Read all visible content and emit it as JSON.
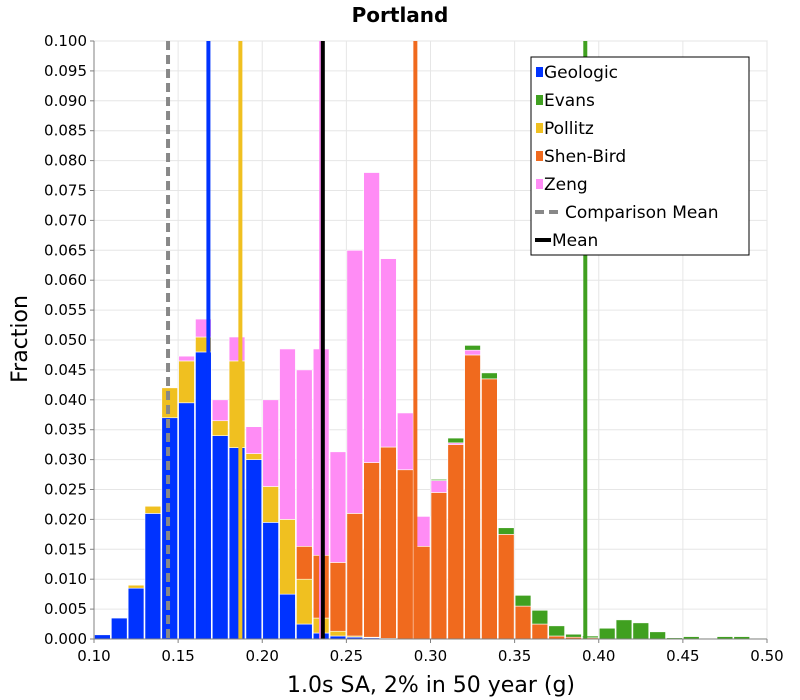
{
  "chart_data": {
    "type": "bar",
    "title": "Portland",
    "xlabel": "1.0s SA, 2% in 50 year (g)",
    "ylabel": "Fraction",
    "xlim": [
      0.1,
      0.5
    ],
    "ylim": [
      0.0,
      0.1
    ],
    "x_ticks": [
      "0.10",
      "0.15",
      "0.20",
      "0.25",
      "0.30",
      "0.35",
      "0.40",
      "0.45",
      "0.50"
    ],
    "y_ticks": [
      "0.000",
      "0.005",
      "0.010",
      "0.015",
      "0.020",
      "0.025",
      "0.030",
      "0.035",
      "0.040",
      "0.045",
      "0.050",
      "0.055",
      "0.060",
      "0.065",
      "0.070",
      "0.075",
      "0.080",
      "0.085",
      "0.090",
      "0.095",
      "0.100"
    ],
    "grid": true,
    "stacked": true,
    "legend_position": "top-right",
    "bin_width": 0.01,
    "bin_starts": [
      0.1,
      0.11,
      0.12,
      0.13,
      0.14,
      0.15,
      0.16,
      0.17,
      0.18,
      0.19,
      0.2,
      0.21,
      0.22,
      0.23,
      0.24,
      0.25,
      0.26,
      0.27,
      0.28,
      0.29,
      0.3,
      0.31,
      0.32,
      0.33,
      0.34,
      0.35,
      0.36,
      0.37,
      0.38,
      0.39,
      0.4,
      0.41,
      0.42,
      0.43,
      0.44,
      0.45,
      0.46,
      0.47,
      0.48,
      0.49
    ],
    "series": [
      {
        "name": "Geologic",
        "color": "#0033ff",
        "values": [
          0.0007,
          0.0035,
          0.0085,
          0.021,
          0.037,
          0.0395,
          0.048,
          0.034,
          0.032,
          0.03,
          0.0195,
          0.0075,
          0.0025,
          0.001,
          0.0005,
          0.0003,
          0.0002,
          0.0001,
          0,
          0,
          0,
          0,
          0,
          0,
          0,
          0,
          0,
          0,
          0,
          0,
          0,
          0,
          0,
          0,
          0,
          0,
          0,
          0,
          0,
          0
        ]
      },
      {
        "name": "Pollitz",
        "color": "#f0c020",
        "values": [
          0,
          0,
          0.0005,
          0.0012,
          0.005,
          0.007,
          0.0025,
          0.0025,
          0.0145,
          0.001,
          0.006,
          0.0125,
          0.0075,
          0.0025,
          0.0008,
          0.0002,
          0.0001,
          0,
          0,
          0,
          0,
          0,
          0,
          0,
          0,
          0,
          0,
          0,
          0,
          0,
          0,
          0,
          0,
          0,
          0,
          0,
          0,
          0,
          0,
          0
        ]
      },
      {
        "name": "Shen-Bird",
        "color": "#f06a1e",
        "values": [
          0,
          0,
          0,
          0,
          0,
          0,
          0,
          0,
          0,
          0,
          0,
          0,
          0.0055,
          0.0105,
          0.0115,
          0.0205,
          0.0292,
          0.032,
          0.0283,
          0.0155,
          0.0245,
          0.0325,
          0.0475,
          0.0435,
          0.0175,
          0.0055,
          0.0025,
          0.0005,
          0.0003,
          0.0002,
          0,
          0,
          0,
          0,
          0,
          0,
          0,
          0,
          0,
          0
        ]
      },
      {
        "name": "Zeng",
        "color": "#ff8cf5",
        "values": [
          0,
          0,
          0,
          0,
          0,
          0.0008,
          0.003,
          0.0035,
          0.004,
          0.0045,
          0.0145,
          0.0285,
          0.0295,
          0.0345,
          0.0185,
          0.044,
          0.0485,
          0.0315,
          0.0095,
          0.005,
          0.002,
          0.0003,
          0.0008,
          0,
          0,
          0,
          0,
          0,
          0,
          0,
          0,
          0,
          0,
          0,
          0,
          0,
          0,
          0,
          0,
          0
        ]
      },
      {
        "name": "Evans",
        "color": "#40a020",
        "values": [
          0,
          0,
          0,
          0,
          0,
          0,
          0,
          0,
          0,
          0,
          0,
          0,
          0,
          0,
          0,
          0,
          0,
          0,
          0,
          0,
          0.0002,
          0.0008,
          0.0008,
          0.001,
          0.0011,
          0.0018,
          0.0023,
          0.0017,
          0.0005,
          0.0003,
          0.0018,
          0.0032,
          0.0027,
          0.0012,
          0.0002,
          0.0004,
          0.0001,
          0.0004,
          0.0004,
          0.0001
        ]
      }
    ],
    "lines": [
      {
        "name": "Geologic",
        "x": 0.168,
        "color": "#0033ff",
        "style": "solid"
      },
      {
        "name": "Evans",
        "x": 0.392,
        "color": "#40a020",
        "style": "solid"
      },
      {
        "name": "Pollitz",
        "x": 0.187,
        "color": "#f0c020",
        "style": "solid"
      },
      {
        "name": "Shen-Bird",
        "x": 0.291,
        "color": "#f06a1e",
        "style": "solid"
      },
      {
        "name": "Zeng",
        "x": 0.235,
        "color": "#ff8cf5",
        "style": "solid"
      },
      {
        "name": "Comparison Mean",
        "x": 0.144,
        "color": "#888888",
        "style": "dashed"
      },
      {
        "name": "Mean",
        "x": 0.236,
        "color": "#000000",
        "style": "solid"
      }
    ],
    "legend": [
      {
        "label": "Geologic",
        "color": "#0033ff",
        "kind": "square"
      },
      {
        "label": "Evans",
        "color": "#40a020",
        "kind": "square"
      },
      {
        "label": "Pollitz",
        "color": "#f0c020",
        "kind": "square"
      },
      {
        "label": "Shen-Bird",
        "color": "#f06a1e",
        "kind": "square"
      },
      {
        "label": "Zeng",
        "color": "#ff8cf5",
        "kind": "square"
      },
      {
        "label": "Comparison Mean",
        "color": "#888888",
        "kind": "dashed"
      },
      {
        "label": "Mean",
        "color": "#000000",
        "kind": "line"
      }
    ]
  }
}
